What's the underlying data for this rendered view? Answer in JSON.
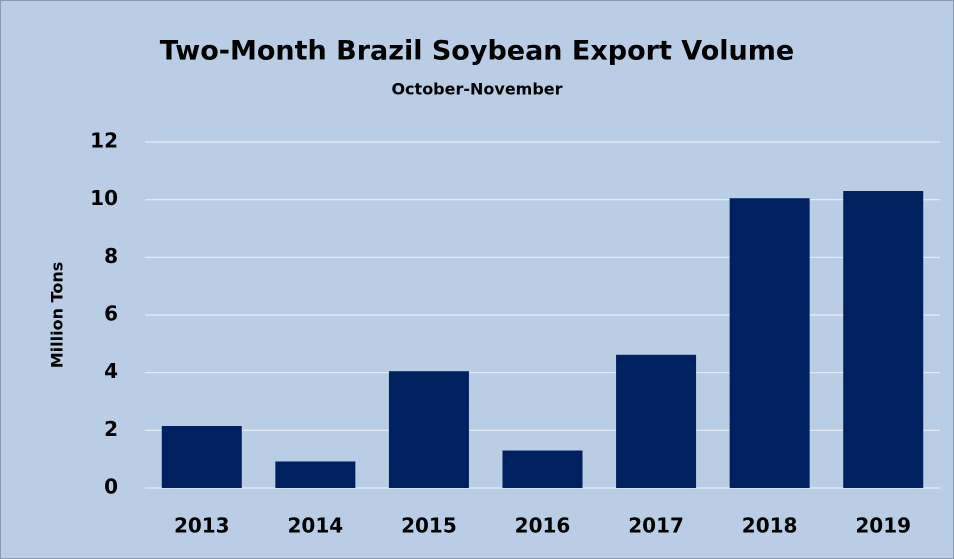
{
  "chart_data": {
    "type": "bar",
    "title": "Two-Month Brazil Soybean Export Volume",
    "subtitle": "October-November",
    "y_label": "Million Tons",
    "categories": [
      "2013",
      "2014",
      "2015",
      "2016",
      "2017",
      "2018",
      "2019"
    ],
    "values": [
      2.15,
      0.92,
      4.05,
      1.3,
      4.62,
      10.05,
      10.3
    ],
    "color": "#002060",
    "ylim": [
      0,
      12
    ],
    "yticks": [
      0,
      2,
      4,
      6,
      8,
      10,
      12
    ],
    "grid": true
  }
}
